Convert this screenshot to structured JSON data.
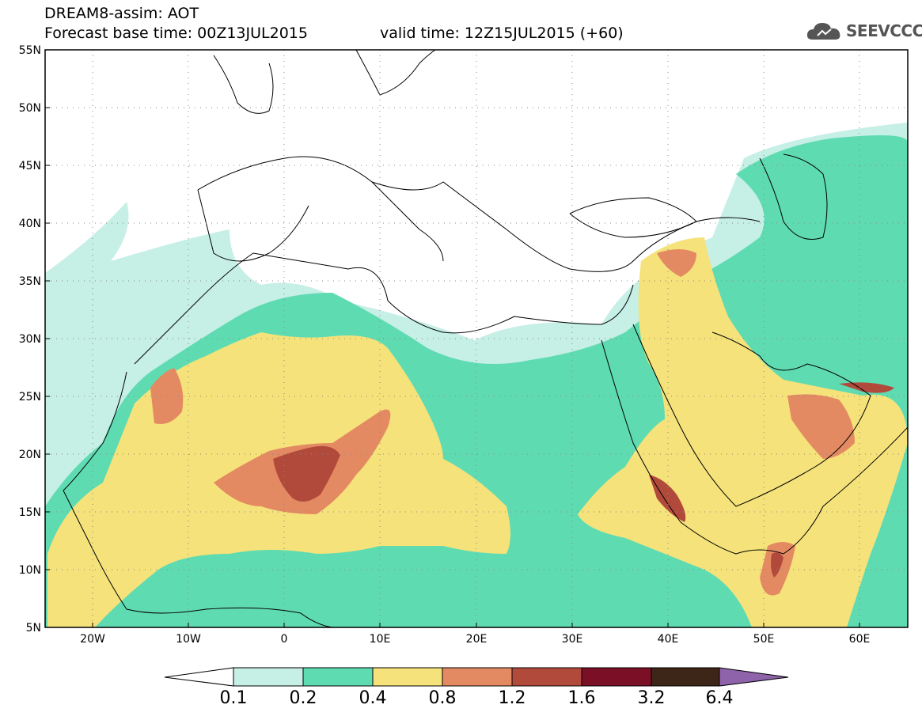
{
  "header": {
    "line1": "DREAM8-assim: AOT",
    "line2": "Forecast base time: 00Z13JUL2015",
    "valid": "valid time: 12Z15JUL2015 (+60)"
  },
  "logo": {
    "text": "SEEVCCC",
    "icon": "cloud-icon"
  },
  "map": {
    "lat_labels": [
      "55N",
      "50N",
      "45N",
      "40N",
      "35N",
      "30N",
      "25N",
      "20N",
      "15N",
      "10N",
      "5N"
    ],
    "lon_labels": [
      "20W",
      "10W",
      "0",
      "10E",
      "20E",
      "30E",
      "40E",
      "50E",
      "60E"
    ],
    "lat_range": [
      5,
      55
    ],
    "lon_range": [
      -25,
      65
    ],
    "graticule": "dotted"
  },
  "colorbar": {
    "labels": [
      "0.1",
      "0.2",
      "0.4",
      "0.8",
      "1.2",
      "1.6",
      "3.2",
      "6.4"
    ],
    "colors": [
      "#ffffff",
      "#c6efe6",
      "#5fdbb2",
      "#f5e27a",
      "#e48a63",
      "#b24a3c",
      "#7a0f26",
      "#3d2518",
      "#8e63a9"
    ]
  },
  "fields": {
    "c1": "#c6efe6",
    "c2": "#5fdbb2",
    "c3": "#f5e27a",
    "c4": "#e48a63",
    "c5": "#b24a3c",
    "c6": "#7a0f26",
    "c7": "#3d2518"
  }
}
